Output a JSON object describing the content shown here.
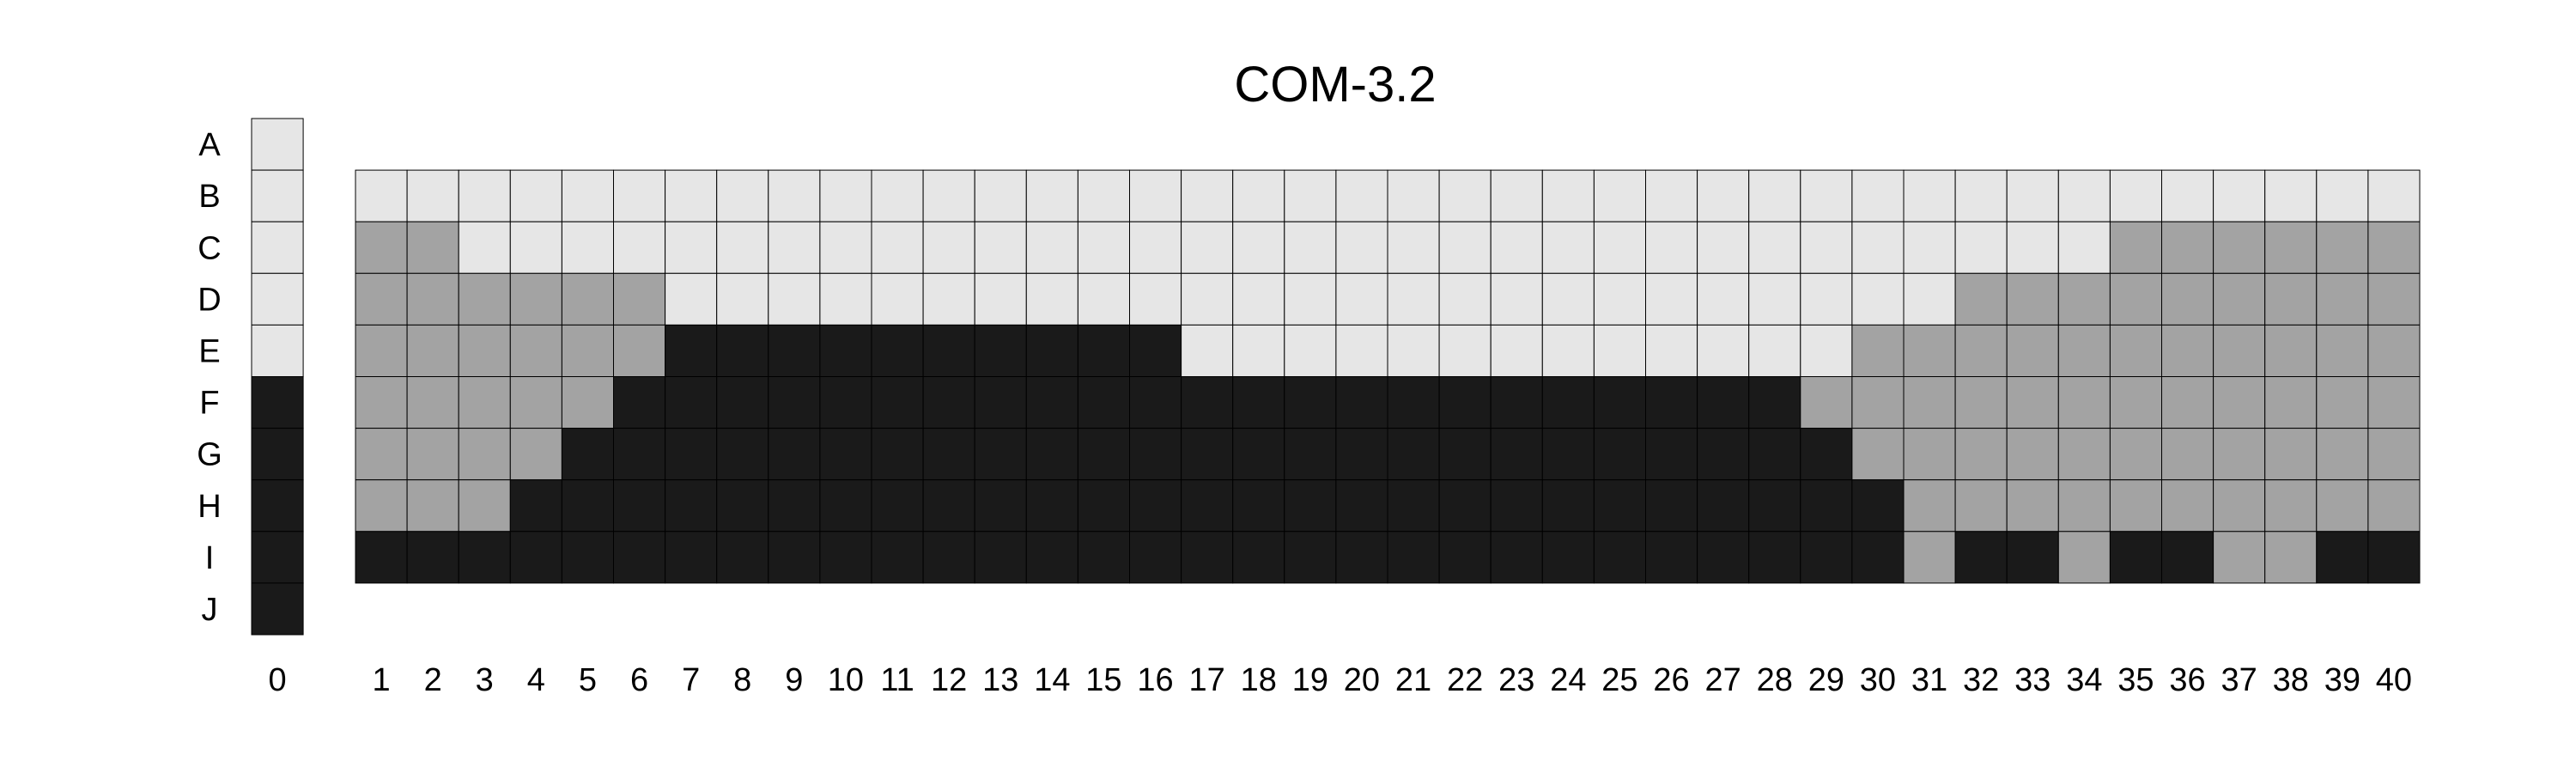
{
  "title": "COM-3.2",
  "row_labels": [
    "A",
    "B",
    "C",
    "D",
    "E",
    "F",
    "G",
    "H",
    "I",
    "J"
  ],
  "palette": {
    "L": "#e6e6e6",
    "M": "#a3a3a3",
    "D": "#1a1a1a"
  },
  "column0": {
    "label": "0",
    "cells": [
      "L",
      "L",
      "L",
      "L",
      "L",
      "D",
      "D",
      "D",
      "D",
      "D"
    ]
  },
  "main_rows": [
    "B",
    "C",
    "D",
    "E",
    "F",
    "G",
    "H",
    "I"
  ],
  "main_columns": [
    "1",
    "2",
    "3",
    "4",
    "5",
    "6",
    "7",
    "8",
    "9",
    "10",
    "11",
    "12",
    "13",
    "14",
    "15",
    "16",
    "17",
    "18",
    "19",
    "20",
    "21",
    "22",
    "23",
    "24",
    "25",
    "26",
    "27",
    "28",
    "29",
    "30",
    "31",
    "32",
    "33",
    "34",
    "35",
    "36",
    "37",
    "38",
    "39",
    "40"
  ],
  "main_cells": {
    "B": [
      "L",
      "L",
      "L",
      "L",
      "L",
      "L",
      "L",
      "L",
      "L",
      "L",
      "L",
      "L",
      "L",
      "L",
      "L",
      "L",
      "L",
      "L",
      "L",
      "L",
      "L",
      "L",
      "L",
      "L",
      "L",
      "L",
      "L",
      "L",
      "L",
      "L",
      "L",
      "L",
      "L",
      "L",
      "L",
      "L",
      "L",
      "L",
      "L",
      "L"
    ],
    "C": [
      "M",
      "M",
      "L",
      "L",
      "L",
      "L",
      "L",
      "L",
      "L",
      "L",
      "L",
      "L",
      "L",
      "L",
      "L",
      "L",
      "L",
      "L",
      "L",
      "L",
      "L",
      "L",
      "L",
      "L",
      "L",
      "L",
      "L",
      "L",
      "L",
      "L",
      "L",
      "L",
      "L",
      "L",
      "M",
      "M",
      "M",
      "M",
      "M",
      "M"
    ],
    "D": [
      "M",
      "M",
      "M",
      "M",
      "M",
      "M",
      "L",
      "L",
      "L",
      "L",
      "L",
      "L",
      "L",
      "L",
      "L",
      "L",
      "L",
      "L",
      "L",
      "L",
      "L",
      "L",
      "L",
      "L",
      "L",
      "L",
      "L",
      "L",
      "L",
      "L",
      "L",
      "M",
      "M",
      "M",
      "M",
      "M",
      "M",
      "M",
      "M",
      "M"
    ],
    "E": [
      "M",
      "M",
      "M",
      "M",
      "M",
      "M",
      "D",
      "D",
      "D",
      "D",
      "D",
      "D",
      "D",
      "D",
      "D",
      "D",
      "L",
      "L",
      "L",
      "L",
      "L",
      "L",
      "L",
      "L",
      "L",
      "L",
      "L",
      "L",
      "L",
      "M",
      "M",
      "M",
      "M",
      "M",
      "M",
      "M",
      "M",
      "M",
      "M",
      "M"
    ],
    "F": [
      "M",
      "M",
      "M",
      "M",
      "M",
      "D",
      "D",
      "D",
      "D",
      "D",
      "D",
      "D",
      "D",
      "D",
      "D",
      "D",
      "D",
      "D",
      "D",
      "D",
      "D",
      "D",
      "D",
      "D",
      "D",
      "D",
      "D",
      "D",
      "M",
      "M",
      "M",
      "M",
      "M",
      "M",
      "M",
      "M",
      "M",
      "M",
      "M",
      "M"
    ],
    "G": [
      "M",
      "M",
      "M",
      "M",
      "D",
      "D",
      "D",
      "D",
      "D",
      "D",
      "D",
      "D",
      "D",
      "D",
      "D",
      "D",
      "D",
      "D",
      "D",
      "D",
      "D",
      "D",
      "D",
      "D",
      "D",
      "D",
      "D",
      "D",
      "D",
      "M",
      "M",
      "M",
      "M",
      "M",
      "M",
      "M",
      "M",
      "M",
      "M",
      "M"
    ],
    "H": [
      "M",
      "M",
      "M",
      "D",
      "D",
      "D",
      "D",
      "D",
      "D",
      "D",
      "D",
      "D",
      "D",
      "D",
      "D",
      "D",
      "D",
      "D",
      "D",
      "D",
      "D",
      "D",
      "D",
      "D",
      "D",
      "D",
      "D",
      "D",
      "D",
      "D",
      "M",
      "M",
      "M",
      "M",
      "M",
      "M",
      "M",
      "M",
      "M",
      "M"
    ],
    "I": [
      "D",
      "D",
      "D",
      "D",
      "D",
      "D",
      "D",
      "D",
      "D",
      "D",
      "D",
      "D",
      "D",
      "D",
      "D",
      "D",
      "D",
      "D",
      "D",
      "D",
      "D",
      "D",
      "D",
      "D",
      "D",
      "D",
      "D",
      "D",
      "D",
      "D",
      "M",
      "D",
      "D",
      "M",
      "D",
      "D",
      "M",
      "M",
      "D",
      "D"
    ]
  }
}
